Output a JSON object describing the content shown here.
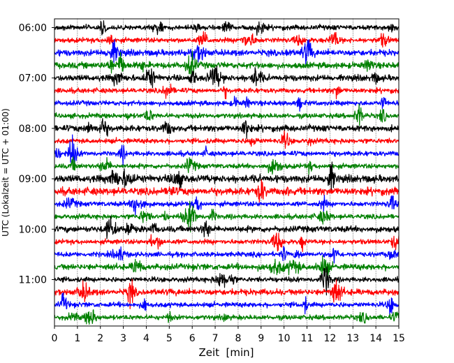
{
  "chart_data": {
    "type": "line",
    "title": "",
    "xlabel": "Zeit  [min]",
    "ylabel": "UTC (Lokalzeit = UTC + 01:00)",
    "xlim": [
      0,
      15
    ],
    "x_ticks": [
      "0",
      "1",
      "2",
      "3",
      "4",
      "5",
      "6",
      "7",
      "8",
      "9",
      "10",
      "11",
      "12",
      "13",
      "14",
      "15"
    ],
    "y_tick_labels": [
      "06:00",
      "07:00",
      "08:00",
      "09:00",
      "10:00",
      "11:00"
    ],
    "grid": "vertical dotted lines at each minute",
    "trace_colors": [
      "#000000",
      "#ff0000",
      "#0000ff",
      "#008000"
    ],
    "traces": [
      {
        "start": "06:00",
        "color": "#000000",
        "amplitude": 0.08
      },
      {
        "start": "06:15",
        "color": "#ff0000",
        "amplitude": 0.08
      },
      {
        "start": "06:30",
        "color": "#0000ff",
        "amplitude": 0.1
      },
      {
        "start": "06:45",
        "color": "#008000",
        "amplitude": 0.1
      },
      {
        "start": "07:00",
        "color": "#000000",
        "amplitude": 0.1
      },
      {
        "start": "07:15",
        "color": "#ff0000",
        "amplitude": 0.08
      },
      {
        "start": "07:30",
        "color": "#0000ff",
        "amplitude": 0.08
      },
      {
        "start": "07:45",
        "color": "#008000",
        "amplitude": 0.08
      },
      {
        "start": "08:00",
        "color": "#000000",
        "amplitude": 0.1
      },
      {
        "start": "08:15",
        "color": "#ff0000",
        "amplitude": 0.08
      },
      {
        "start": "08:30",
        "color": "#0000ff",
        "amplitude": 0.08
      },
      {
        "start": "08:45",
        "color": "#008000",
        "amplitude": 0.08
      },
      {
        "start": "09:00",
        "color": "#000000",
        "amplitude": 0.12
      },
      {
        "start": "09:15",
        "color": "#ff0000",
        "amplitude": 0.12
      },
      {
        "start": "09:30",
        "color": "#0000ff",
        "amplitude": 0.08
      },
      {
        "start": "09:45",
        "color": "#008000",
        "amplitude": 0.08
      },
      {
        "start": "10:00",
        "color": "#000000",
        "amplitude": 0.1
      },
      {
        "start": "10:15",
        "color": "#ff0000",
        "amplitude": 0.08
      },
      {
        "start": "10:30",
        "color": "#0000ff",
        "amplitude": 0.08
      },
      {
        "start": "10:45",
        "color": "#008000",
        "amplitude": 0.1
      },
      {
        "start": "11:00",
        "color": "#000000",
        "amplitude": 0.08
      },
      {
        "start": "11:15",
        "color": "#ff0000",
        "amplitude": 0.1
      },
      {
        "start": "11:30",
        "color": "#0000ff",
        "amplitude": 0.08
      },
      {
        "start": "11:45",
        "color": "#008000",
        "amplitude": 0.08
      }
    ]
  }
}
